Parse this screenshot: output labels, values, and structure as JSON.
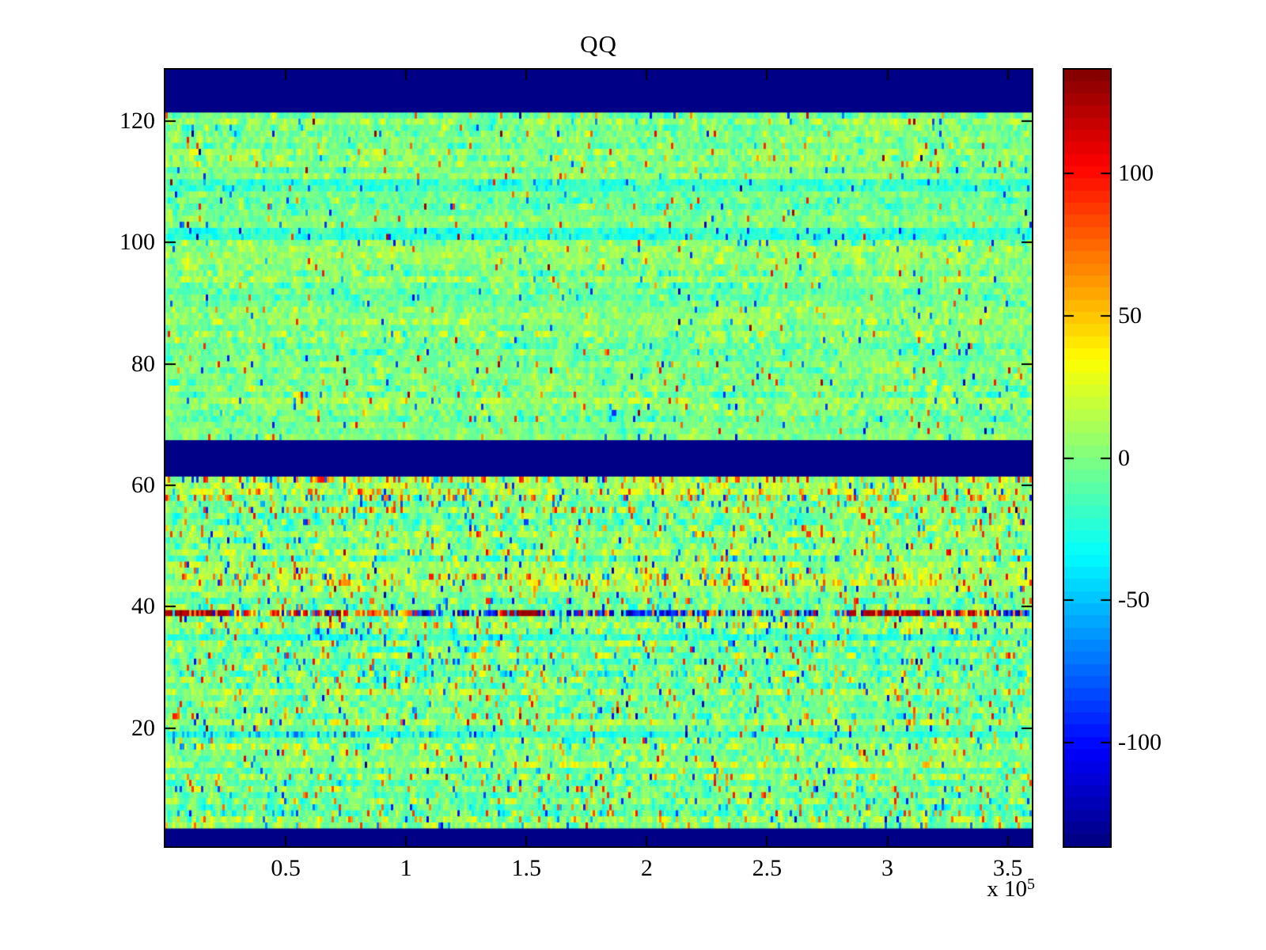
{
  "title": "QQ",
  "axes": {
    "x": {
      "ticks": [
        {
          "label": "0.5",
          "value": 50000
        },
        {
          "label": "1",
          "value": 100000
        },
        {
          "label": "1.5",
          "value": 150000
        },
        {
          "label": "2",
          "value": 200000
        },
        {
          "label": "2.5",
          "value": 250000
        },
        {
          "label": "3",
          "value": 300000
        },
        {
          "label": "3.5",
          "value": 350000
        }
      ],
      "range": [
        0,
        360000
      ],
      "exponent_base": "x 10",
      "exponent": "5"
    },
    "y": {
      "ticks": [
        {
          "label": "20",
          "value": 20
        },
        {
          "label": "40",
          "value": 40
        },
        {
          "label": "60",
          "value": 60
        },
        {
          "label": "80",
          "value": 80
        },
        {
          "label": "100",
          "value": 100
        },
        {
          "label": "120",
          "value": 120
        }
      ],
      "range": [
        0.5,
        128.5
      ]
    }
  },
  "colorbar": {
    "ticks": [
      {
        "label": "100",
        "value": 100
      },
      {
        "label": "50",
        "value": 50
      },
      {
        "label": "0",
        "value": 0
      },
      {
        "label": "-50",
        "value": -50
      },
      {
        "label": "-100",
        "value": -100
      }
    ],
    "clim": [
      -136.5,
      136.5
    ],
    "colormap": "jet",
    "levels": 64
  },
  "chart_data": {
    "type": "heatmap",
    "title": "QQ",
    "xlabel": "",
    "ylabel": "",
    "x_range": [
      0,
      360000
    ],
    "x_tick_values": [
      50000,
      100000,
      150000,
      200000,
      250000,
      300000,
      350000
    ],
    "x_exponent": 5,
    "y_range": [
      0.5,
      128.5
    ],
    "y_tick_values": [
      20,
      40,
      60,
      80,
      100,
      120
    ],
    "n_rows": 128,
    "clim": [
      -136.5,
      136.5
    ],
    "colormap": "jet",
    "colormap_levels": 64,
    "grid": false,
    "legend": "colorbar-right",
    "background_noise": {
      "mean": 0,
      "std_lower_half": 20,
      "std_upper_half": 15,
      "description": "speckled near-zero noise, mostly green/yellow/cyan with sparse orange, red and blue spikes; lower half (rows 4-61) noisier than upper half (rows 68-121)"
    },
    "solid_min_bands_rows": [
      [
        1,
        3
      ],
      [
        62,
        67
      ],
      [
        122,
        128
      ]
    ],
    "outlier_row": {
      "row": 39,
      "description": "high-amplitude streak row alternating saturated dark-red (~+135) and dark-blue (~-130) bursts",
      "segments": [
        {
          "x0": 0,
          "x1": 27000,
          "type": "solid_hot"
        },
        {
          "x0": 27000,
          "x1": 50000,
          "type": "mix_hot"
        },
        {
          "x0": 50000,
          "x1": 80000,
          "type": "mix_hot"
        },
        {
          "x0": 80000,
          "x1": 105000,
          "type": "mix_warm"
        },
        {
          "x0": 105000,
          "x1": 140000,
          "type": "mix_cold"
        },
        {
          "x0": 140000,
          "x1": 155000,
          "type": "solid_hot"
        },
        {
          "x0": 155000,
          "x1": 190000,
          "type": "mix_cold"
        },
        {
          "x0": 190000,
          "x1": 225000,
          "type": "strong_cold"
        },
        {
          "x0": 225000,
          "x1": 278000,
          "type": "mix_cold"
        },
        {
          "x0": 278000,
          "x1": 290000,
          "type": "mix"
        },
        {
          "x0": 290000,
          "x1": 316000,
          "type": "solid_hot"
        },
        {
          "x0": 316000,
          "x1": 346000,
          "type": "mix_hot"
        },
        {
          "x0": 346000,
          "x1": 360000,
          "type": "mix_cold"
        }
      ]
    },
    "accent_rows": {
      "warm_spike_rows": [
        44,
        45,
        56,
        58,
        59,
        61
      ],
      "cool_rows": [
        19,
        35,
        101,
        102,
        109,
        110
      ]
    }
  }
}
